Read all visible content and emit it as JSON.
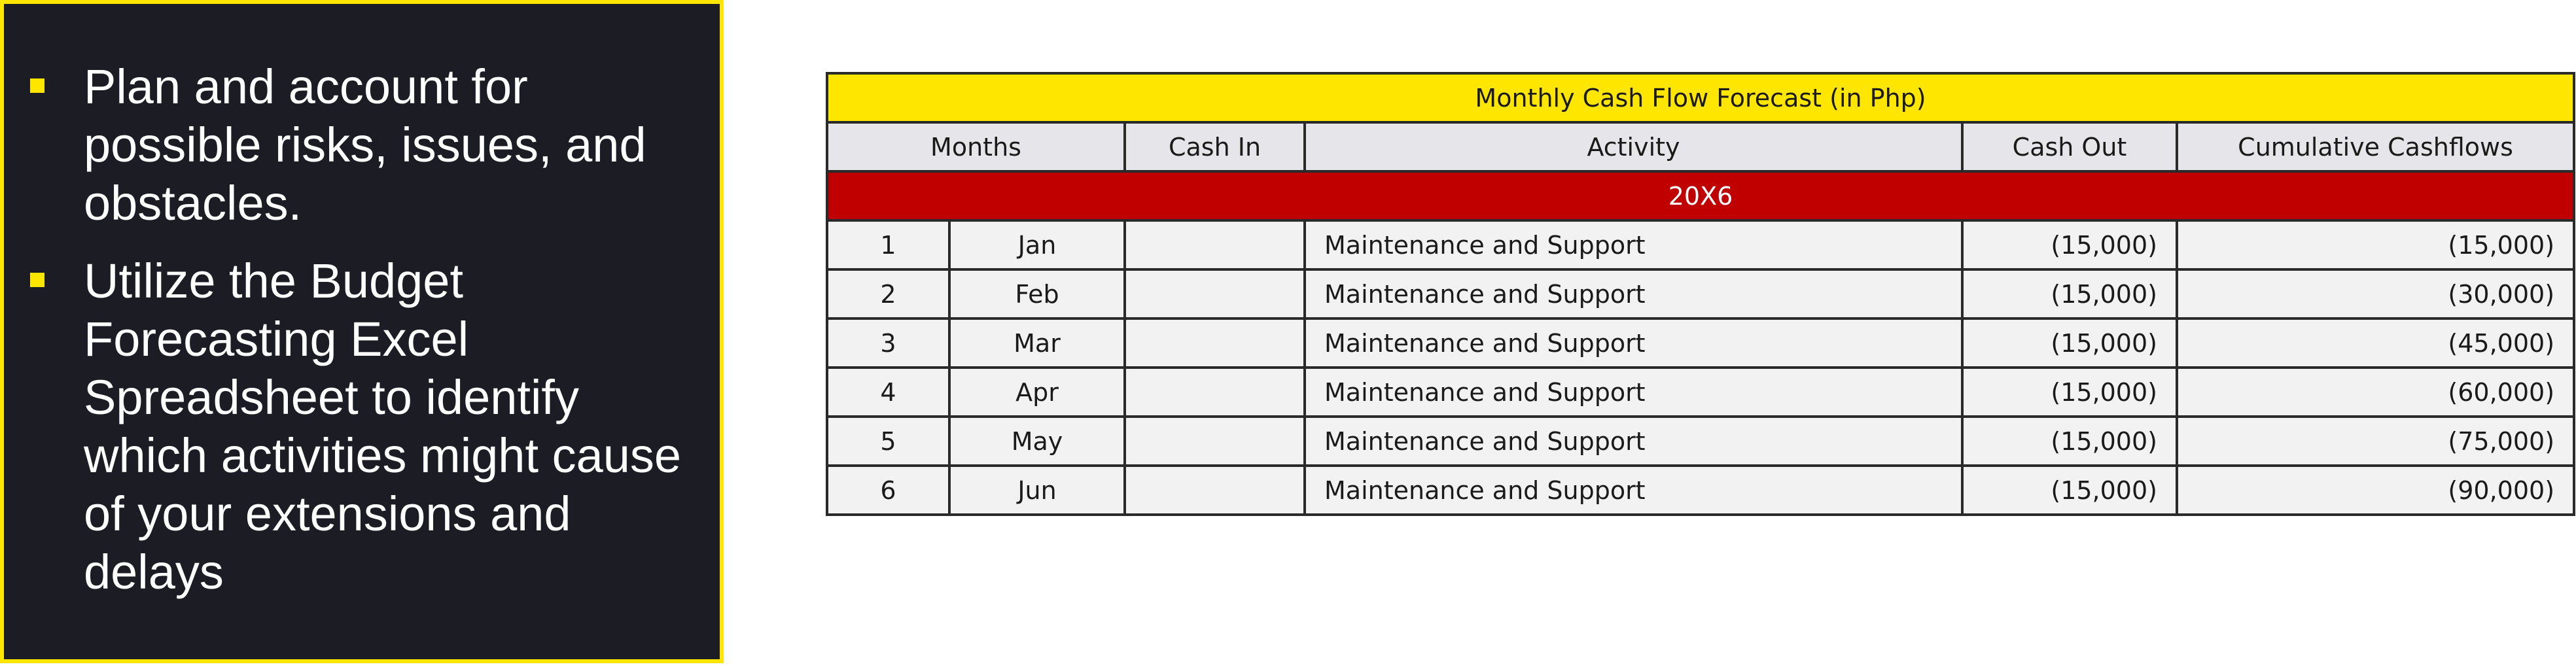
{
  "bullets": [
    "Plan and account for possible risks, issues, and obstacles.",
    "Utilize the Budget Forecasting Excel Spreadsheet to identify which activities might cause of your extensions and delays"
  ],
  "table": {
    "title": "Monthly Cash Flow Forecast (in Php)",
    "headers": {
      "months": "Months",
      "cash_in": "Cash In",
      "activity": "Activity",
      "cash_out": "Cash Out",
      "cumulative": "Cumulative Cashflows"
    },
    "year": "20X6",
    "rows": [
      {
        "num": "1",
        "month": "Jan",
        "cash_in": "",
        "activity": "Maintenance and Support",
        "cash_out": "(15,000)",
        "cumulative": "(15,000)"
      },
      {
        "num": "2",
        "month": "Feb",
        "cash_in": "",
        "activity": "Maintenance and Support",
        "cash_out": "(15,000)",
        "cumulative": "(30,000)"
      },
      {
        "num": "3",
        "month": "Mar",
        "cash_in": "",
        "activity": "Maintenance and Support",
        "cash_out": "(15,000)",
        "cumulative": "(45,000)"
      },
      {
        "num": "4",
        "month": "Apr",
        "cash_in": "",
        "activity": "Maintenance and Support",
        "cash_out": "(15,000)",
        "cumulative": "(60,000)"
      },
      {
        "num": "5",
        "month": "May",
        "cash_in": "",
        "activity": "Maintenance and Support",
        "cash_out": "(15,000)",
        "cumulative": "(75,000)"
      },
      {
        "num": "6",
        "month": "Jun",
        "cash_in": "",
        "activity": "Maintenance and Support",
        "cash_out": "(15,000)",
        "cumulative": "(90,000)"
      }
    ]
  },
  "colors": {
    "accent_yellow": "#ffe600",
    "year_band_red": "#c00000",
    "panel_dark": "#1c1c24"
  }
}
